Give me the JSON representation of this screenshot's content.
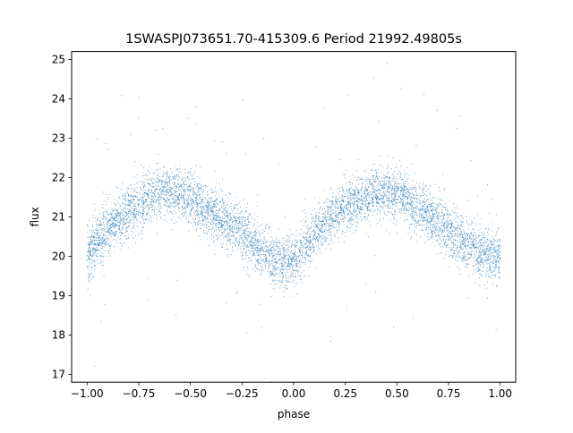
{
  "chart_data": {
    "type": "scatter",
    "title": "1SWASPJ073651.70-415309.6 Period 21992.49805s",
    "xlabel": "phase",
    "ylabel": "flux",
    "xlim": [
      -1.075,
      1.075
    ],
    "ylim": [
      16.8,
      25.2
    ],
    "x_ticks": [
      -1.0,
      -0.75,
      -0.5,
      -0.25,
      0.0,
      0.25,
      0.5,
      0.75,
      1.0
    ],
    "x_tick_labels": [
      "−1.00",
      "−0.75",
      "−0.50",
      "−0.25",
      "0.00",
      "0.25",
      "0.50",
      "0.75",
      "1.00"
    ],
    "y_ticks": [
      17,
      18,
      19,
      20,
      21,
      22,
      23,
      24,
      25
    ],
    "y_tick_labels": [
      "17",
      "18",
      "19",
      "20",
      "21",
      "22",
      "23",
      "24",
      "25"
    ],
    "grid": false,
    "legend": "none",
    "marker_color": "#1f77b4",
    "series": [
      {
        "x": [
          -1.0,
          -0.95,
          -0.9,
          -0.85,
          -0.8,
          -0.75,
          -0.7,
          -0.65,
          -0.6,
          -0.55,
          -0.5,
          -0.45,
          -0.4,
          -0.35,
          -0.3,
          -0.25,
          -0.2,
          -0.15,
          -0.1,
          -0.05,
          0.0,
          0.05,
          0.1,
          0.15,
          0.2,
          0.25,
          0.3,
          0.35,
          0.4,
          0.45,
          0.5,
          0.55,
          0.6,
          0.65,
          0.7,
          0.75,
          0.8,
          0.85,
          0.9,
          0.95,
          1.0
        ],
        "y": [
          20.0,
          20.4,
          20.7,
          20.9,
          21.1,
          21.3,
          21.45,
          21.6,
          21.65,
          21.6,
          21.45,
          21.3,
          21.1,
          20.95,
          20.8,
          20.6,
          20.35,
          20.15,
          19.95,
          19.85,
          19.9,
          20.2,
          20.55,
          20.85,
          21.05,
          21.2,
          21.4,
          21.5,
          21.6,
          21.65,
          21.55,
          21.4,
          21.25,
          21.05,
          20.85,
          20.65,
          20.45,
          20.25,
          20.1,
          20.0,
          20.0
        ]
      }
    ]
  }
}
